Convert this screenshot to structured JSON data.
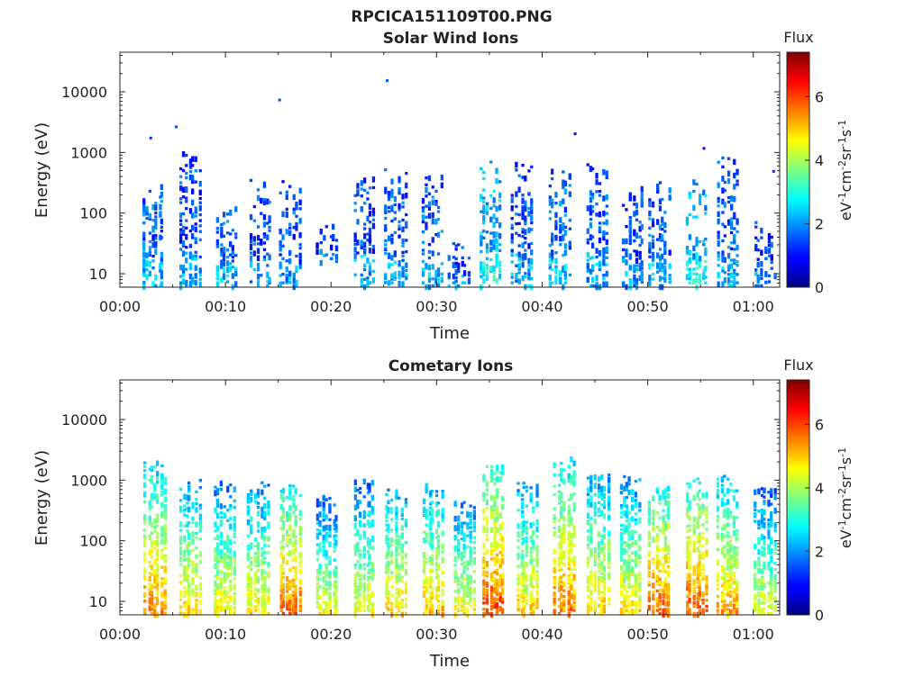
{
  "figure": {
    "title": "RPCICA151109T00.PNG"
  },
  "colormap": "jet",
  "chart_data": [
    {
      "type": "heatmap",
      "title": "Solar Wind Ions",
      "xlabel": "Time",
      "ylabel": "Energy (eV)",
      "x_range_minutes": [
        0,
        62.5
      ],
      "x_ticks": [
        "00:00",
        "00:10",
        "00:20",
        "00:30",
        "00:40",
        "00:50",
        "01:00"
      ],
      "y_scale": "log",
      "y_range": [
        6,
        45000
      ],
      "y_ticks": [
        "10",
        "100",
        "1000",
        "10000"
      ],
      "colorbar": {
        "title": "Flux",
        "label": "eV-1cm-2sr-1s-1",
        "range": [
          0,
          7.4
        ],
        "ticks": [
          "0",
          "2",
          "4",
          "6"
        ]
      },
      "bursts": [
        {
          "t": 3.0,
          "emin": 6,
          "emax": 350,
          "level": 1.6
        },
        {
          "t": 6.5,
          "emin": 6,
          "emax": 900,
          "level": 1.4
        },
        {
          "t": 10.0,
          "emin": 6,
          "emax": 120,
          "level": 1.6
        },
        {
          "t": 13.2,
          "emin": 6,
          "emax": 300,
          "level": 1.4
        },
        {
          "t": 16.0,
          "emin": 6,
          "emax": 280,
          "level": 1.5
        },
        {
          "t": 19.5,
          "emin": 15,
          "emax": 60,
          "level": 1.2
        },
        {
          "t": 23.0,
          "emin": 6,
          "emax": 420,
          "level": 1.5
        },
        {
          "t": 26.0,
          "emin": 6,
          "emax": 550,
          "level": 1.5
        },
        {
          "t": 29.5,
          "emin": 6,
          "emax": 420,
          "level": 1.6
        },
        {
          "t": 32.0,
          "emin": 6,
          "emax": 30,
          "level": 1.4
        },
        {
          "t": 35.0,
          "emin": 6,
          "emax": 700,
          "level": 2.2
        },
        {
          "t": 38.0,
          "emin": 6,
          "emax": 600,
          "level": 1.5
        },
        {
          "t": 41.5,
          "emin": 6,
          "emax": 450,
          "level": 1.7
        },
        {
          "t": 45.0,
          "emin": 6,
          "emax": 700,
          "level": 1.5
        },
        {
          "t": 48.5,
          "emin": 6,
          "emax": 250,
          "level": 1.4
        },
        {
          "t": 51.0,
          "emin": 6,
          "emax": 270,
          "level": 1.6
        },
        {
          "t": 54.5,
          "emin": 6,
          "emax": 300,
          "level": 2.2
        },
        {
          "t": 57.5,
          "emin": 6,
          "emax": 700,
          "level": 1.6
        },
        {
          "t": 61.0,
          "emin": 6,
          "emax": 60,
          "level": 1.3
        }
      ],
      "sparse_points": [
        {
          "t": 2.8,
          "e": 1700,
          "level": 1.3
        },
        {
          "t": 5.2,
          "e": 2600,
          "level": 1.5
        },
        {
          "t": 15.0,
          "e": 7200,
          "level": 1.5
        },
        {
          "t": 25.2,
          "e": 15000,
          "level": 1.5
        },
        {
          "t": 43.0,
          "e": 2000,
          "level": 1.0
        },
        {
          "t": 55.2,
          "e": 1150,
          "level": 1.0
        },
        {
          "t": 61.8,
          "e": 480,
          "level": 1.2
        }
      ]
    },
    {
      "type": "heatmap",
      "title": "Cometary Ions",
      "xlabel": "Time",
      "ylabel": "Energy (eV)",
      "x_range_minutes": [
        0,
        62.5
      ],
      "x_ticks": [
        "00:00",
        "00:10",
        "00:20",
        "00:30",
        "00:40",
        "00:50",
        "01:00"
      ],
      "y_scale": "log",
      "y_range": [
        6,
        45000
      ],
      "y_ticks": [
        "10",
        "100",
        "1000",
        "10000"
      ],
      "colorbar": {
        "title": "Flux",
        "label": "eV-1cm-2sr-1s-1",
        "range": [
          0,
          7.4
        ],
        "ticks": [
          "0",
          "2",
          "4",
          "6"
        ]
      },
      "bursts": [
        {
          "t": 3.2,
          "emin": 6,
          "emax": 1700,
          "level": 5.5
        },
        {
          "t": 6.5,
          "emin": 6,
          "emax": 900,
          "level": 5.0
        },
        {
          "t": 9.8,
          "emin": 6,
          "emax": 800,
          "level": 4.8
        },
        {
          "t": 13.0,
          "emin": 6,
          "emax": 800,
          "level": 4.8
        },
        {
          "t": 16.0,
          "emin": 6,
          "emax": 700,
          "level": 5.8
        },
        {
          "t": 19.5,
          "emin": 6,
          "emax": 500,
          "level": 4.5
        },
        {
          "t": 23.0,
          "emin": 6,
          "emax": 1000,
          "level": 4.6
        },
        {
          "t": 26.0,
          "emin": 6,
          "emax": 700,
          "level": 5.0
        },
        {
          "t": 29.5,
          "emin": 6,
          "emax": 800,
          "level": 5.1
        },
        {
          "t": 32.5,
          "emin": 6,
          "emax": 400,
          "level": 4.7
        },
        {
          "t": 35.3,
          "emin": 6,
          "emax": 1700,
          "level": 6.0
        },
        {
          "t": 38.5,
          "emin": 6,
          "emax": 800,
          "level": 5.0
        },
        {
          "t": 42.0,
          "emin": 6,
          "emax": 2000,
          "level": 5.6
        },
        {
          "t": 45.2,
          "emin": 6,
          "emax": 1200,
          "level": 5.0
        },
        {
          "t": 48.2,
          "emin": 6,
          "emax": 1000,
          "level": 4.9
        },
        {
          "t": 51.0,
          "emin": 6,
          "emax": 700,
          "level": 5.8
        },
        {
          "t": 54.5,
          "emin": 6,
          "emax": 1000,
          "level": 5.9
        },
        {
          "t": 57.5,
          "emin": 6,
          "emax": 1100,
          "level": 5.3
        },
        {
          "t": 61.0,
          "emin": 6,
          "emax": 700,
          "level": 4.5
        }
      ],
      "sparse_points": []
    }
  ]
}
